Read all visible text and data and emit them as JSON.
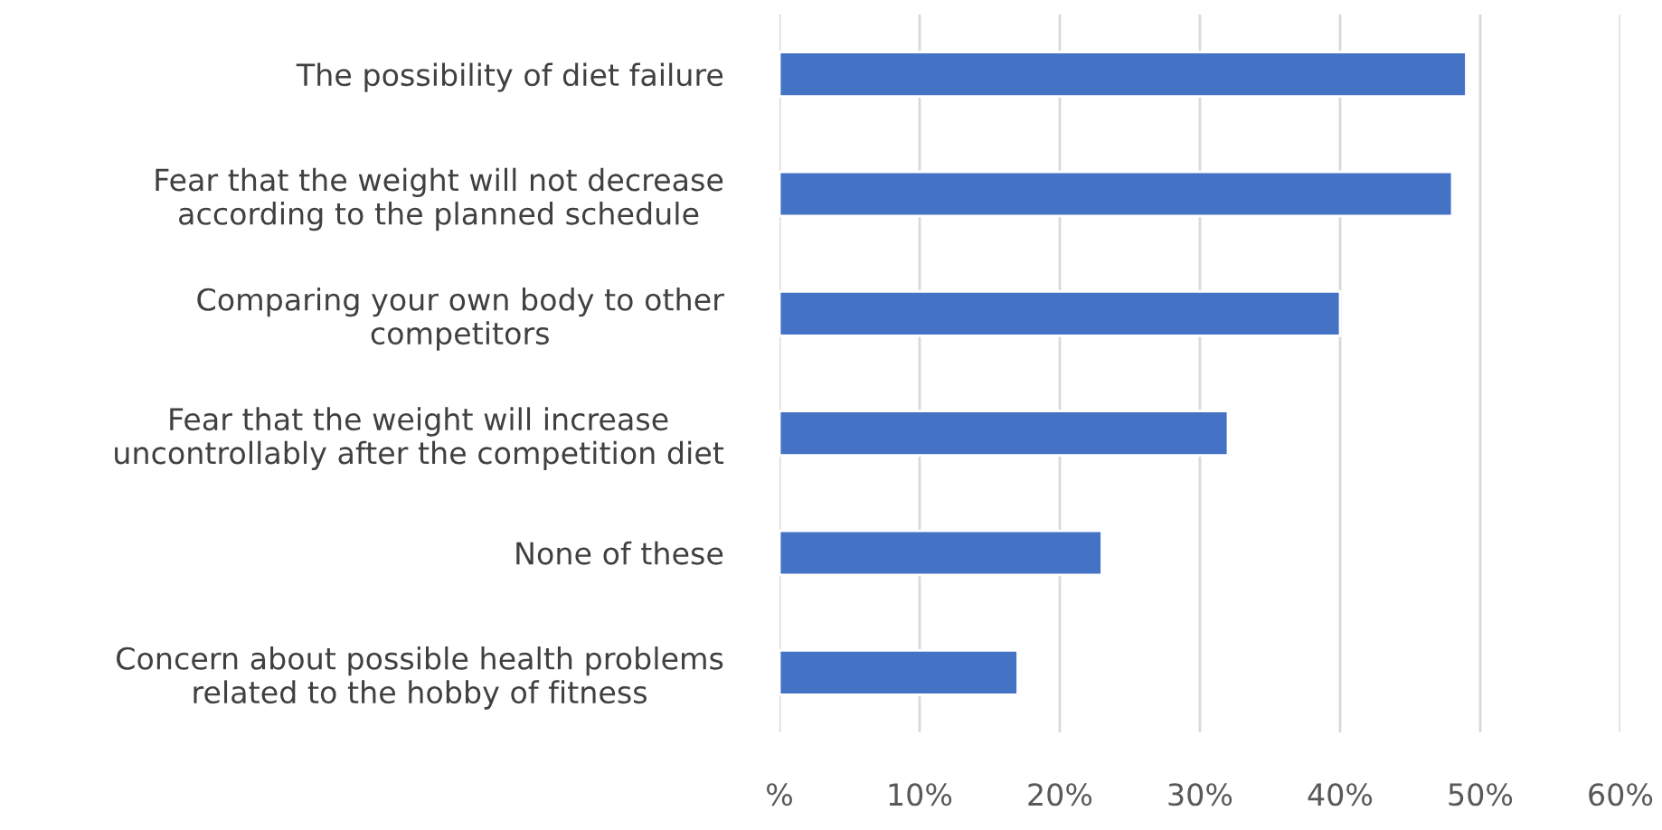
{
  "chart_data": {
    "type": "bar",
    "orientation": "horizontal",
    "categories": [
      "The possibility of diet failure",
      "Fear that the weight will not decrease\naccording to the planned schedule",
      "Comparing your own body to other\ncompetitors",
      "Fear that the weight will increase\nuncontrollably after the competition diet",
      "None of these",
      "Concern about possible health problems\nrelated to the hobby of fitness"
    ],
    "values": [
      49,
      48,
      40,
      32,
      23,
      17
    ],
    "color": "#4472c4",
    "xlim": [
      0,
      60
    ],
    "xticks": [
      {
        "value": 0,
        "label": "%"
      },
      {
        "value": 10,
        "label": "10%"
      },
      {
        "value": 20,
        "label": "20%"
      },
      {
        "value": 30,
        "label": "30%"
      },
      {
        "value": 40,
        "label": "40%"
      },
      {
        "value": 50,
        "label": "50%"
      },
      {
        "value": 60,
        "label": "60%"
      }
    ],
    "grid": "x"
  }
}
